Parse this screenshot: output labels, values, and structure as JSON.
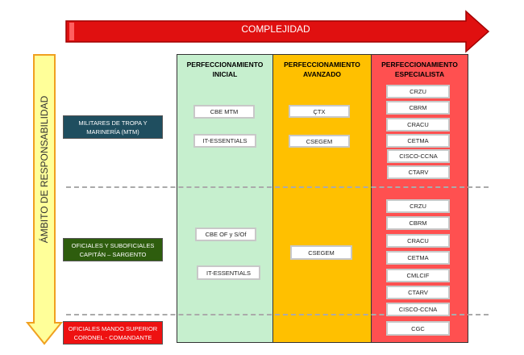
{
  "complexity_arrow": {
    "label": "COMPLEJIDAD",
    "color": "#e01010"
  },
  "scope_arrow": {
    "label": "ÁMBITO DE RESPONSABILIDAD",
    "color": "#ffff99"
  },
  "columns": [
    {
      "title": "PERFECCIONAMIENTO INICIAL",
      "color": "#c6efce"
    },
    {
      "title": "PERFECCIONAMIENTO AVANZADO",
      "color": "#ffc000"
    },
    {
      "title": "PERFECCIONAMIENTO ESPECIALISTA",
      "color": "#ff5050"
    }
  ],
  "categories": [
    {
      "label": "MILITARES DE TROPA Y MARINERÍA (MTM)",
      "color": "#1f4e5f"
    },
    {
      "label": "OFICIALES Y SUBOFICIALES CAPITÁN – SARGENTO",
      "color": "#2e5d0e"
    },
    {
      "label": "OFICIALES MANDO SUPERIOR CORONEL - COMANDANTE",
      "color": "#ee1111"
    }
  ],
  "courses": {
    "inicial": [
      "CBE MTM",
      "IT-ESSENTIALS",
      "CBE OF y S/Of",
      "IT-ESSENTIALS"
    ],
    "avanzado": [
      "ÇTX",
      "CSEGEM",
      "CSEGEM"
    ],
    "especialista_mtm": [
      "CRZU",
      "CBRM",
      "CRACU",
      "CETMA",
      "CISCO-CCNA",
      "CTARV"
    ],
    "especialista_of": [
      "CRZU",
      "CBRM",
      "CRACU",
      "CETMA",
      "CMLCIF",
      "CTARV",
      "CISCO-CCNA"
    ],
    "especialista_sup": [
      "CGC"
    ]
  }
}
